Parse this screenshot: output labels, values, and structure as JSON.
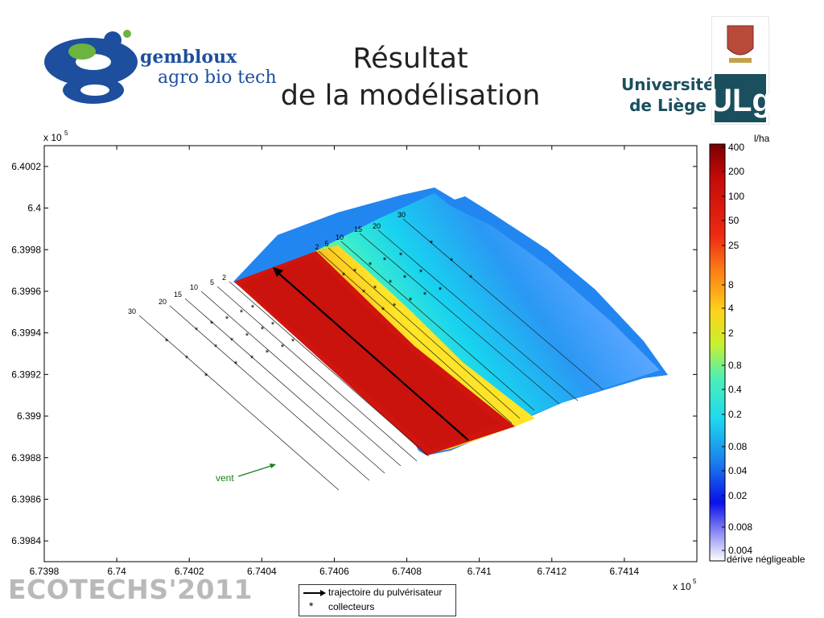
{
  "slide": {
    "title_line1": "Résultat",
    "title_line2": "de la modélisation",
    "logo_left_line1": "gembloux",
    "logo_left_line2": "agro bio tech",
    "logo_right_line1": "Université",
    "logo_right_line2": "de Liège",
    "logo_right_mark": "ULg",
    "footer": "ECOTECHS'2011"
  },
  "colors": {
    "logo_blue": "#1d4f9e",
    "logo_green": "#6cb33f",
    "ulg_teal": "#1a4f5e",
    "dark_red": "#8b0000",
    "red": "#e3150e",
    "trajectory": "#000000",
    "wind_label": "#1a7f1a"
  },
  "chart_data": {
    "type": "heatmap",
    "title": "",
    "x_multiplier_label": "x 10",
    "x_multiplier_exp": "5",
    "y_multiplier_label": "x 10",
    "y_multiplier_exp": "5",
    "xlim": [
      6.7398,
      6.7416
    ],
    "ylim": [
      6.3983,
      6.4003
    ],
    "x_ticks": [
      6.7398,
      6.74,
      6.7402,
      6.7404,
      6.7406,
      6.7408,
      6.741,
      6.7412,
      6.7414
    ],
    "x_tick_labels": [
      "6.7398",
      "6.74",
      "6.7402",
      "6.7404",
      "6.7406",
      "6.7408",
      "6.741",
      "6.7412",
      "6.7414"
    ],
    "y_ticks": [
      6.4002,
      6.4,
      6.3998,
      6.3996,
      6.3994,
      6.3992,
      6.399,
      6.3988,
      6.3986,
      6.3984
    ],
    "y_tick_labels": [
      "6.4002",
      "6.4",
      "6.3998",
      "6.3996",
      "6.3994",
      "6.3992",
      "6.399",
      "6.3988",
      "6.3986",
      "6.3984"
    ],
    "colorbar": {
      "unit": "l/ha",
      "labels": [
        "400",
        "200",
        "100",
        "50",
        "25",
        "8",
        "4",
        "2",
        "0.8",
        "0.4",
        "0.2",
        "0.08",
        "0.04",
        "0.02",
        "0.008",
        "0.004"
      ],
      "bottom_note": "dérive négligeable"
    },
    "line_labels": [
      "30",
      "20",
      "15",
      "10",
      "5",
      "2"
    ],
    "annotation": "vent",
    "legend": [
      "trajectoire du pulvérisateur",
      "collecteurs"
    ]
  }
}
